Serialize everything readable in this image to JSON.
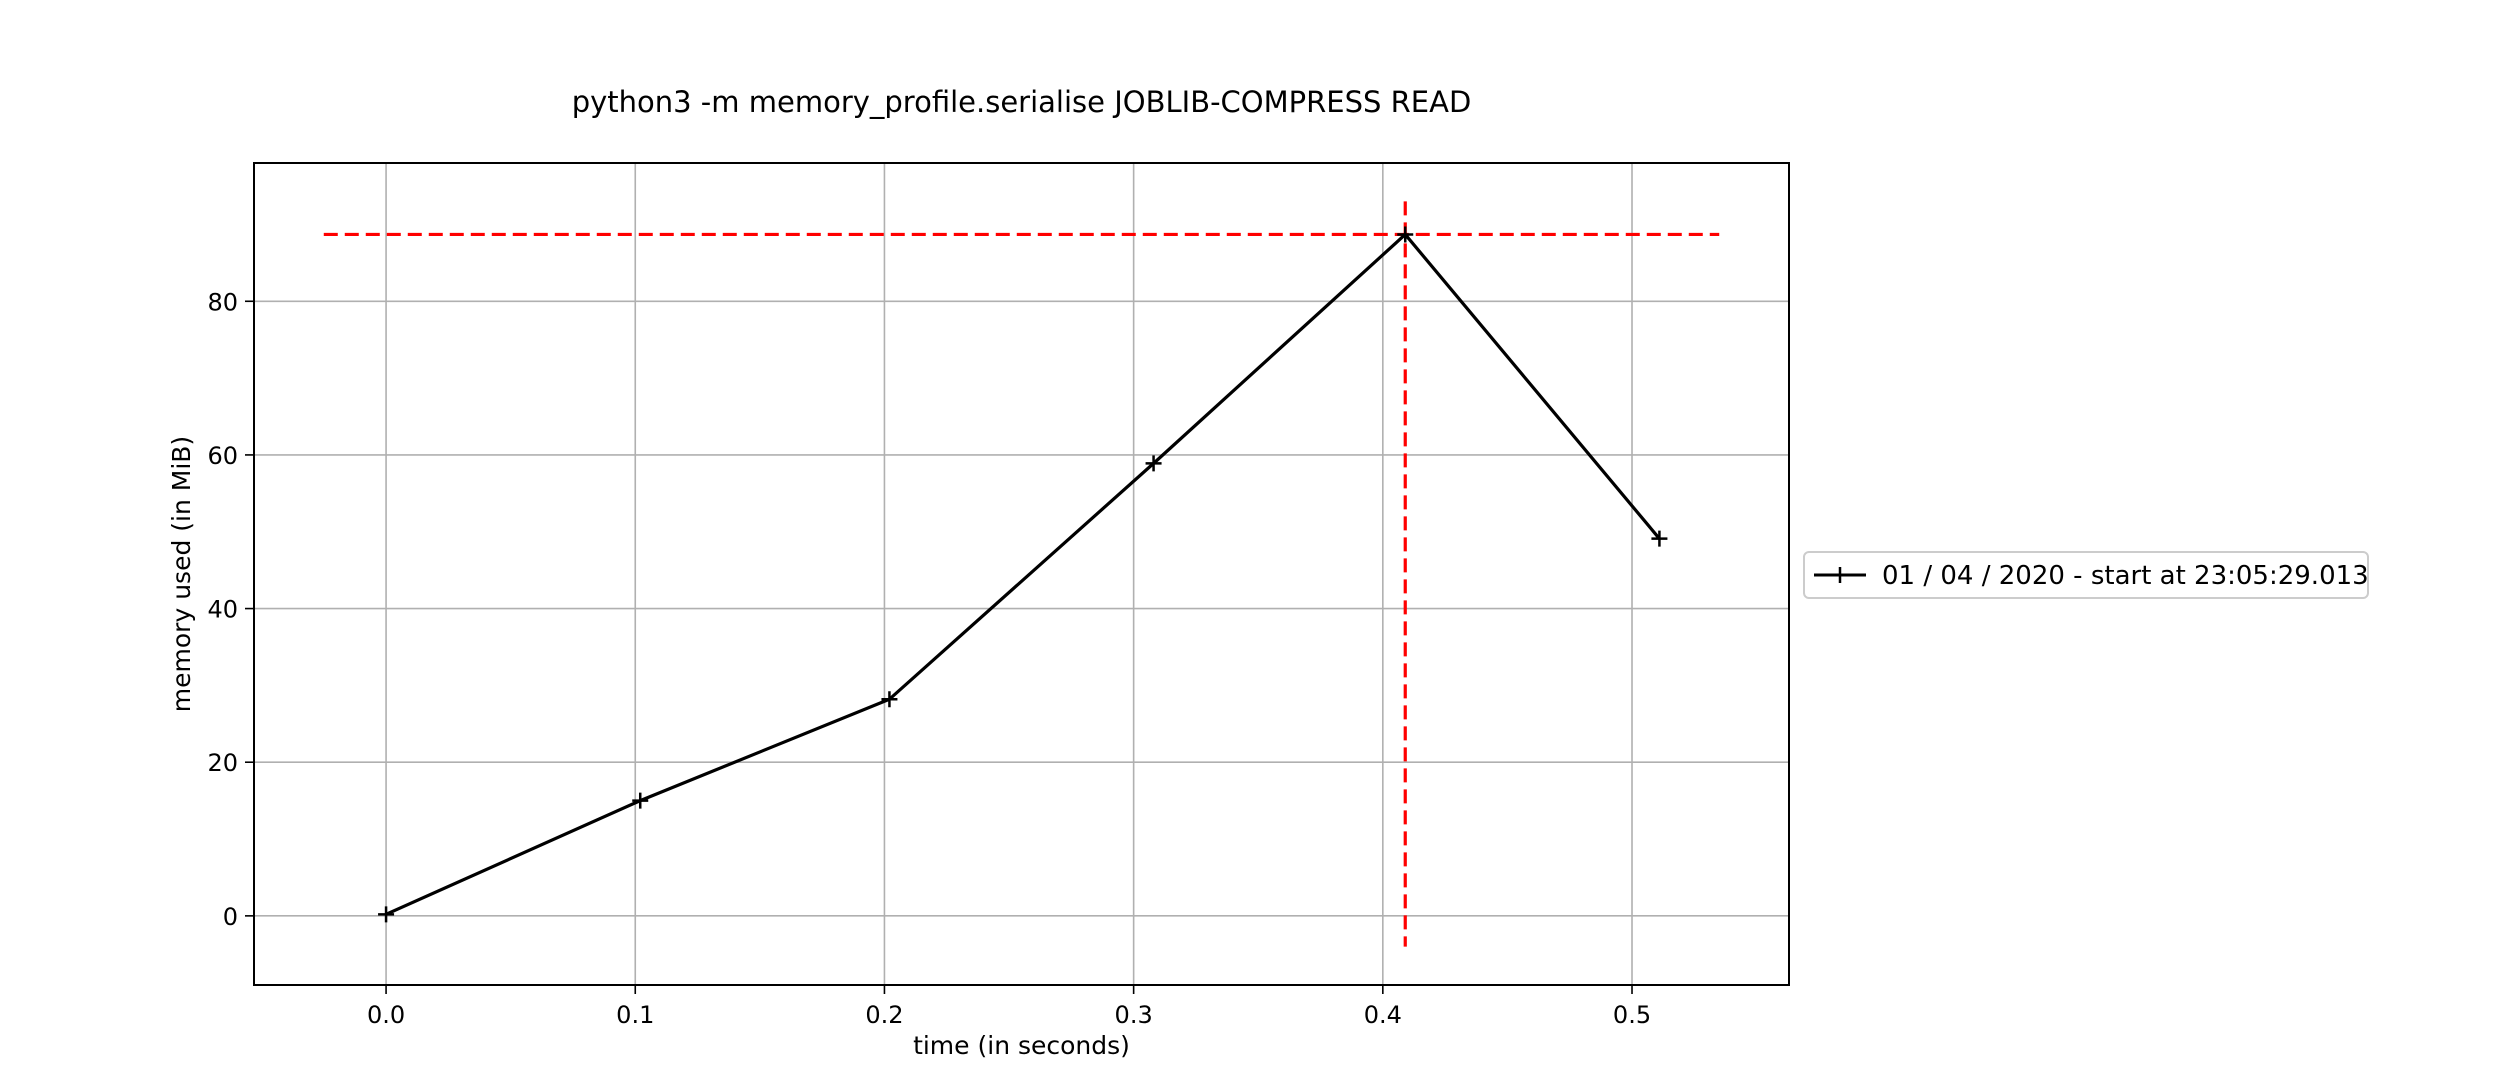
{
  "chart_data": {
    "type": "line",
    "title": "python3 -m memory_profile.serialise JOBLIB-COMPRESS READ",
    "xlabel": "time (in seconds)",
    "ylabel": "memory used (in MiB)",
    "xlim": [
      -0.053,
      0.563
    ],
    "ylim": [
      -9,
      98
    ],
    "xticks": [
      0.0,
      0.1,
      0.2,
      0.3,
      0.4,
      0.5
    ],
    "xtick_labels": [
      "0.0",
      "0.1",
      "0.2",
      "0.3",
      "0.4",
      "0.5"
    ],
    "yticks": [
      0,
      20,
      40,
      60,
      80
    ],
    "ytick_labels": [
      "0",
      "20",
      "40",
      "60",
      "80"
    ],
    "grid": true,
    "legend_position": "outside-right",
    "series": [
      {
        "name": "01 / 04 / 2020 - start at 23:05:29.013",
        "color": "#000000",
        "marker": "plus",
        "x": [
          0.0,
          0.102,
          0.202,
          0.308,
          0.409,
          0.511
        ],
        "y": [
          0.2,
          15.0,
          28.2,
          58.9,
          88.7,
          49.1
        ]
      }
    ],
    "annotations": {
      "peak_hline": {
        "y": 88.7,
        "x_from": -0.025,
        "x_to": 0.535,
        "color": "#ff0000",
        "style": "dashed"
      },
      "peak_vline": {
        "x": 0.409,
        "y_from": -4,
        "y_to": 93,
        "color": "#ff0000",
        "style": "dashed"
      }
    }
  }
}
